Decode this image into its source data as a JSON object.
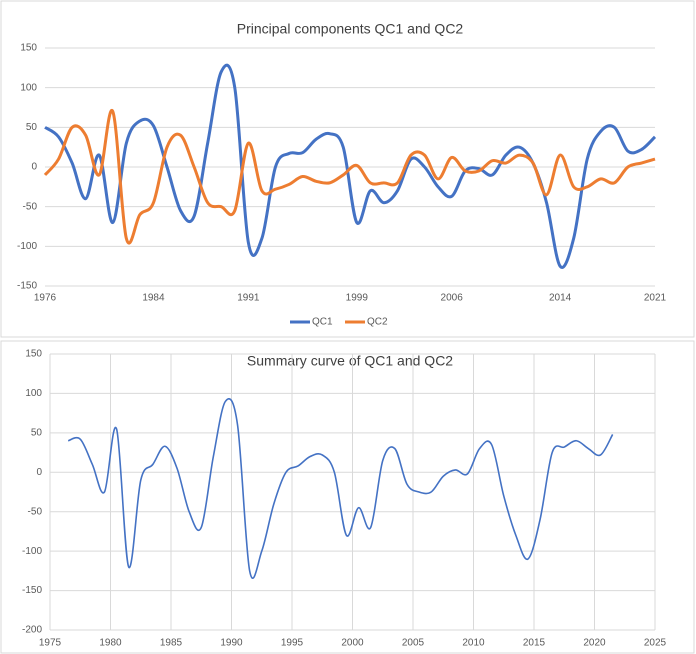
{
  "chart_data": [
    {
      "type": "line",
      "title": "Principal components QC1 and QC2",
      "x": [
        1976,
        1977,
        1978,
        1979,
        1980,
        1981,
        1982,
        1983,
        1984,
        1985,
        1986,
        1987,
        1988,
        1989,
        1990,
        1991,
        1992,
        1993,
        1994,
        1995,
        1996,
        1997,
        1998,
        1999,
        2000,
        2001,
        2002,
        2003,
        2004,
        2005,
        2006,
        2007,
        2008,
        2009,
        2010,
        2011,
        2012,
        2013,
        2014,
        2015,
        2016,
        2017,
        2018,
        2019,
        2020,
        2021
      ],
      "series": [
        {
          "name": "QC1",
          "color": "#4472c4",
          "values": [
            50,
            38,
            5,
            -40,
            15,
            -70,
            30,
            58,
            52,
            0,
            -55,
            -62,
            30,
            120,
            100,
            -95,
            -90,
            0,
            17,
            18,
            35,
            42,
            25,
            -70,
            -30,
            -45,
            -30,
            10,
            0,
            -25,
            -37,
            -5,
            -2,
            -10,
            15,
            25,
            5,
            -45,
            -125,
            -90,
            10,
            45,
            50,
            20,
            22,
            38
          ]
        },
        {
          "name": "QC2",
          "color": "#ed7d31",
          "values": [
            -10,
            10,
            50,
            40,
            -10,
            70,
            -90,
            -60,
            -45,
            25,
            40,
            0,
            -45,
            -50,
            -55,
            30,
            -30,
            -28,
            -22,
            -12,
            -18,
            -20,
            -10,
            2,
            -20,
            -20,
            -20,
            15,
            15,
            -15,
            12,
            -5,
            -5,
            8,
            5,
            15,
            5,
            -35,
            15,
            -25,
            -25,
            -15,
            -20,
            0,
            5,
            10
          ]
        }
      ],
      "xlim": [
        1976,
        2021
      ],
      "xticks": [
        1976,
        1984,
        1991,
        1999,
        2006,
        2014,
        2021
      ],
      "ylim": [
        -150,
        150
      ],
      "yticks": [
        -150,
        -100,
        -50,
        0,
        50,
        100,
        150
      ],
      "grid": true,
      "legend": "bottom"
    },
    {
      "type": "line",
      "title": "Summary curve of QC1 and QC2",
      "x": [
        1976.5,
        1977.5,
        1978.5,
        1979.5,
        1980.5,
        1981.5,
        1982.5,
        1983.5,
        1984.5,
        1985.5,
        1986.5,
        1987.5,
        1988.5,
        1989.5,
        1990.5,
        1991.5,
        1992.5,
        1993.5,
        1994.5,
        1995.5,
        1996.5,
        1997.5,
        1998.5,
        1999.5,
        2000.5,
        2001.5,
        2002.5,
        2003.5,
        2004.5,
        2005.5,
        2006.5,
        2007.5,
        2008.5,
        2009.5,
        2010.5,
        2011.5,
        2012.5,
        2013.5,
        2014.5,
        2015.5,
        2016.5,
        2017.5,
        2018.5,
        2019.5,
        2020.5,
        2021.5
      ],
      "series": [
        {
          "color": "#4472c4",
          "values": [
            40,
            42,
            10,
            -25,
            55,
            -120,
            -10,
            10,
            33,
            5,
            -50,
            -70,
            20,
            90,
            60,
            -125,
            -100,
            -40,
            0,
            8,
            20,
            22,
            0,
            -80,
            -45,
            -70,
            15,
            30,
            -15,
            -25,
            -25,
            -5,
            3,
            -2,
            30,
            35,
            -30,
            -80,
            -110,
            -60,
            25,
            32,
            40,
            30,
            22,
            48
          ]
        }
      ],
      "xlim": [
        1975,
        2025
      ],
      "xticks": [
        1975,
        1980,
        1985,
        1990,
        1995,
        2000,
        2005,
        2010,
        2015,
        2020,
        2025
      ],
      "ylim": [
        -200,
        150
      ],
      "yticks": [
        -200,
        -150,
        -100,
        -50,
        0,
        50,
        100,
        150
      ],
      "grid": true
    }
  ]
}
